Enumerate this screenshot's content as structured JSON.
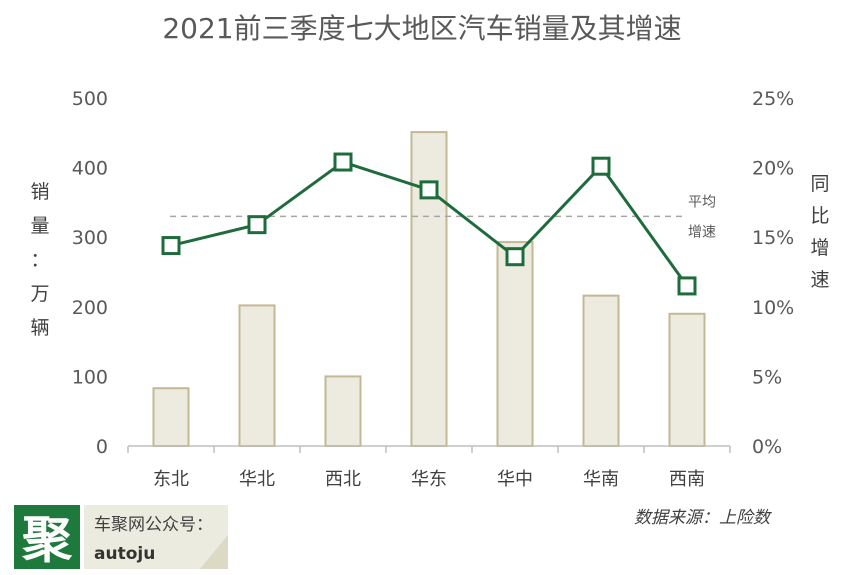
{
  "chart_data": {
    "type": "bar",
    "title": "2021前三季度七大地区汽车销量及其增速",
    "categories": [
      "东北",
      "华北",
      "西北",
      "华东",
      "华中",
      "华南",
      "西南"
    ],
    "series": [
      {
        "type": "bar",
        "axis": "left",
        "values": [
          83,
          202,
          100,
          451,
          293,
          216,
          190
        ],
        "color": "#edebdf",
        "stroke": "#c3b894"
      },
      {
        "type": "line",
        "axis": "right",
        "values": [
          14.4,
          15.9,
          20.4,
          18.4,
          13.6,
          20.1,
          11.5
        ],
        "color": "#1e6b3c"
      }
    ],
    "average_line": {
      "value": 16.5,
      "axis": "right",
      "label_top": "平均",
      "label_bottom": "增速"
    },
    "y_left": {
      "label_chars": [
        "销",
        "量",
        "：",
        "万",
        "辆"
      ],
      "ticks": [
        "0",
        "100",
        "200",
        "300",
        "400",
        "500"
      ],
      "range": [
        0,
        500
      ]
    },
    "y_right": {
      "label_chars": [
        "同",
        "比",
        "增",
        "速"
      ],
      "ticks": [
        "0%",
        "5%",
        "10%",
        "15%",
        "20%",
        "25%"
      ],
      "range": [
        0,
        25
      ]
    },
    "grid": false,
    "source": "数据来源：上险数"
  },
  "branding": {
    "logo_char": "聚",
    "account_label": "车聚网公众号：",
    "account_id": "autoju",
    "logo_color": "#1e7a3c"
  }
}
